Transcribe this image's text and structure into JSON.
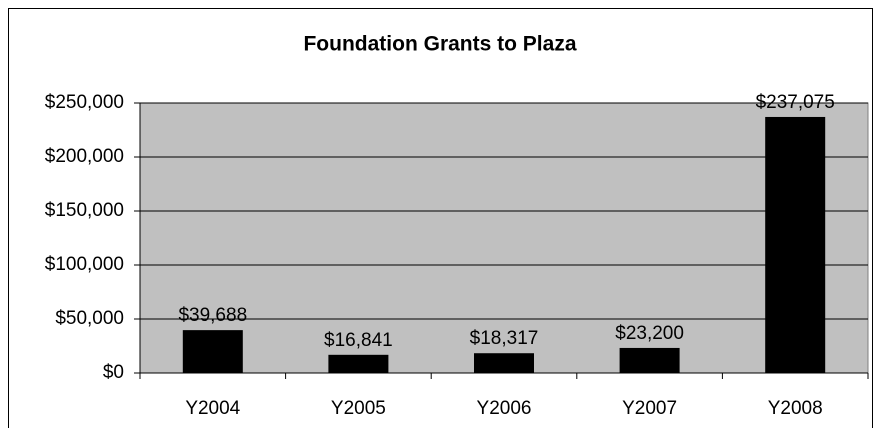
{
  "chart_data": {
    "type": "bar",
    "title": "Foundation Grants to Plaza",
    "categories": [
      "Y2004",
      "Y2005",
      "Y2006",
      "Y2007",
      "Y2008"
    ],
    "values": [
      39688,
      16841,
      18317,
      23200,
      237075
    ],
    "value_labels": [
      "$39,688",
      "$16,841",
      "$18,317",
      "$23,200",
      "$237,075"
    ],
    "color": "#000000",
    "plot_background": "#c0c0c0",
    "ylim": [
      0,
      250000
    ],
    "yticks": [
      {
        "value": 0,
        "label": "$0"
      },
      {
        "value": 50000,
        "label": "$50,000"
      },
      {
        "value": 100000,
        "label": "$100,000"
      },
      {
        "value": 150000,
        "label": "$150,000"
      },
      {
        "value": 200000,
        "label": "$200,000"
      },
      {
        "value": 250000,
        "label": "$250,000"
      }
    ],
    "grid": true
  }
}
